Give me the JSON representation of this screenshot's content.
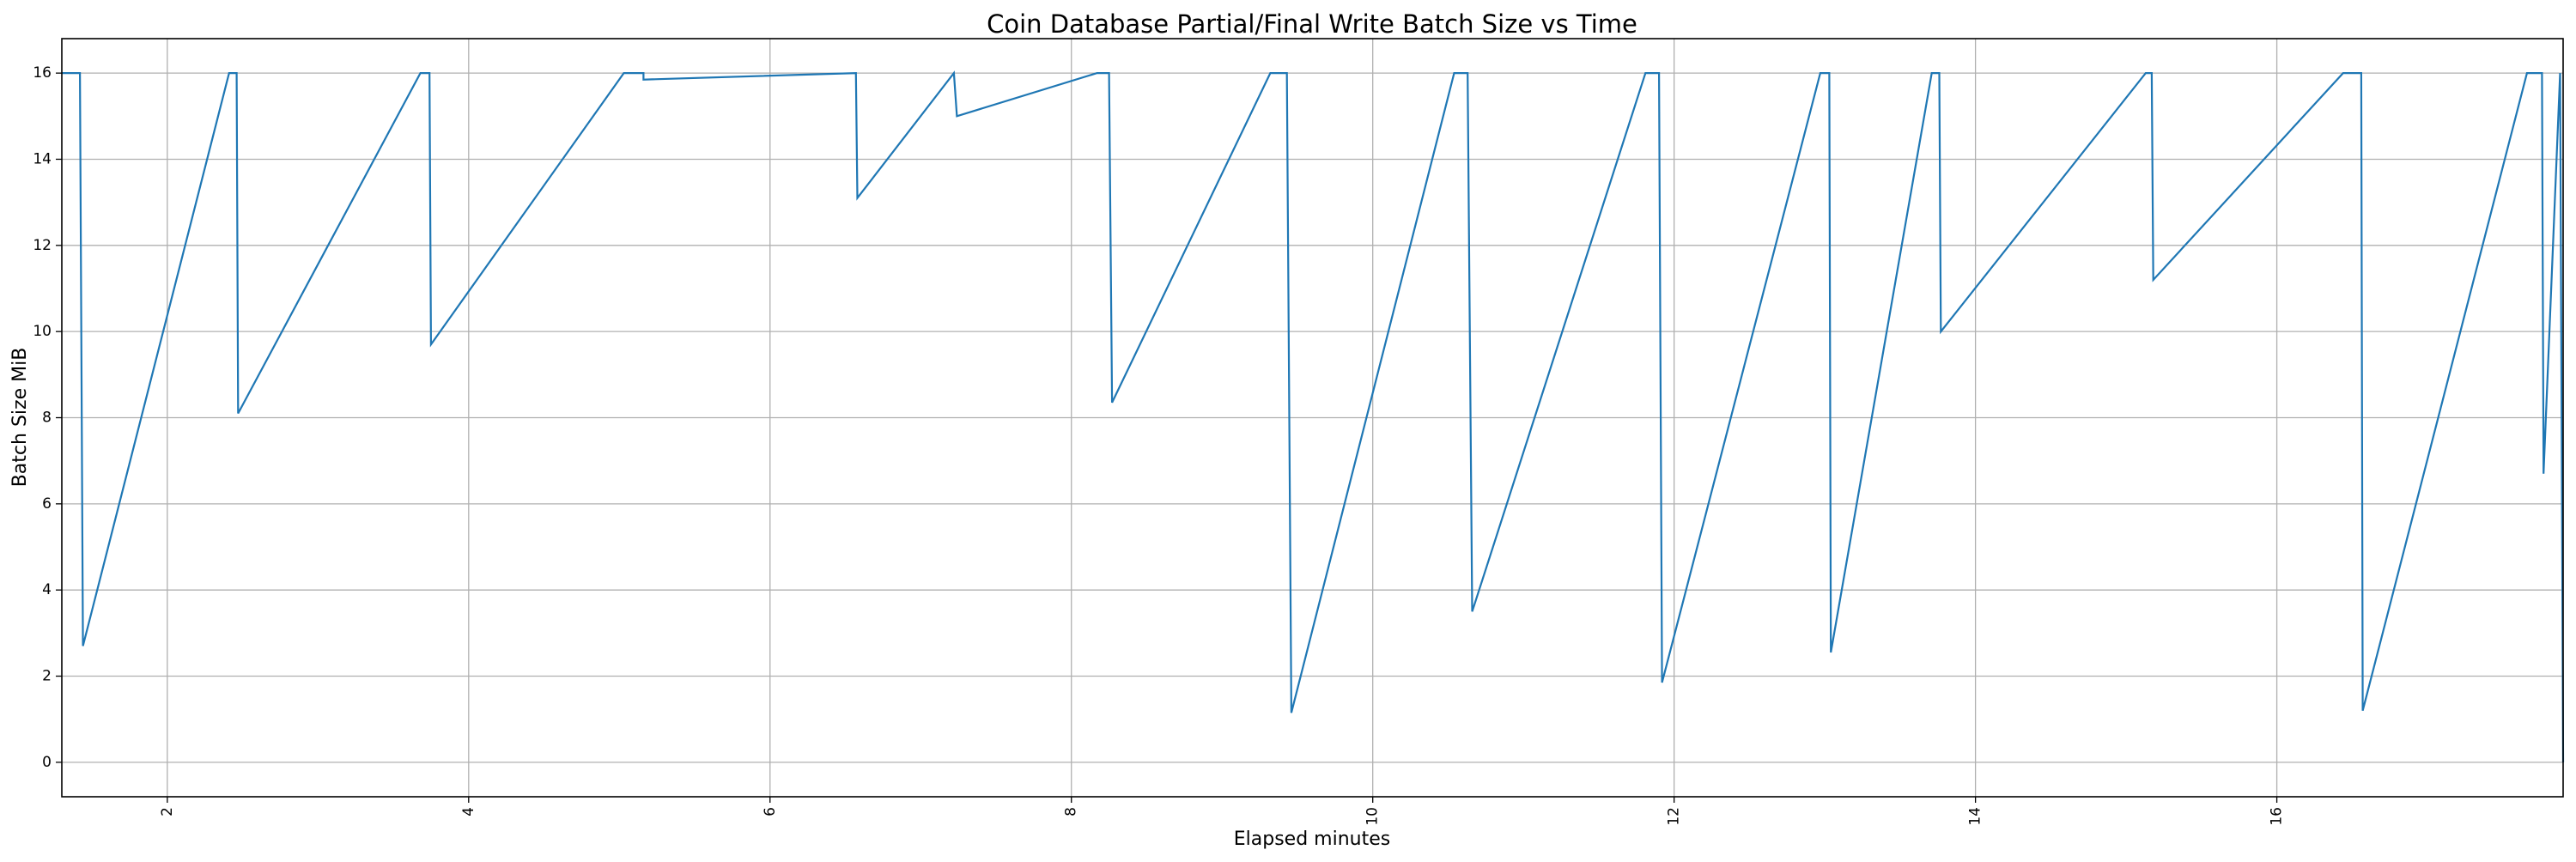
{
  "chart_data": {
    "type": "line",
    "title": "Coin Database Partial/Final Write Batch Size vs Time",
    "xlabel": "Elapsed minutes",
    "ylabel": "Batch Size MiB",
    "xlim": [
      1.3,
      17.9
    ],
    "ylim": [
      -0.8,
      16.8
    ],
    "xticks": [
      2,
      4,
      6,
      8,
      10,
      12,
      14,
      16
    ],
    "yticks": [
      0,
      2,
      4,
      6,
      8,
      10,
      12,
      14,
      16
    ],
    "grid": true,
    "line_color": "#1f77b4",
    "series": [
      {
        "x": [
          1.3,
          1.42,
          1.44,
          2.41,
          2.46,
          2.47,
          3.68,
          3.74,
          3.75,
          5.03,
          5.16,
          5.16,
          6.57,
          6.58,
          7.22,
          7.24,
          8.17,
          8.25,
          8.27,
          9.32,
          9.43,
          9.46,
          10.54,
          10.63,
          10.66,
          11.81,
          11.9,
          11.92,
          12.97,
          13.03,
          13.04,
          13.71,
          13.76,
          13.77,
          15.13,
          15.17,
          15.18,
          16.44,
          16.56,
          16.57,
          17.66,
          17.76,
          17.77,
          17.88,
          17.9
        ],
        "y": [
          16,
          16,
          2.7,
          16,
          16,
          8.1,
          16,
          16,
          9.7,
          16,
          16,
          15.85,
          16,
          13.1,
          16,
          15.0,
          16,
          16,
          8.35,
          16,
          16,
          1.15,
          16,
          16,
          3.5,
          16,
          16,
          1.85,
          16,
          16,
          2.55,
          16,
          16,
          10.0,
          16,
          16,
          11.2,
          16,
          16,
          1.2,
          16,
          16,
          6.7,
          16,
          0.0
        ]
      }
    ]
  }
}
